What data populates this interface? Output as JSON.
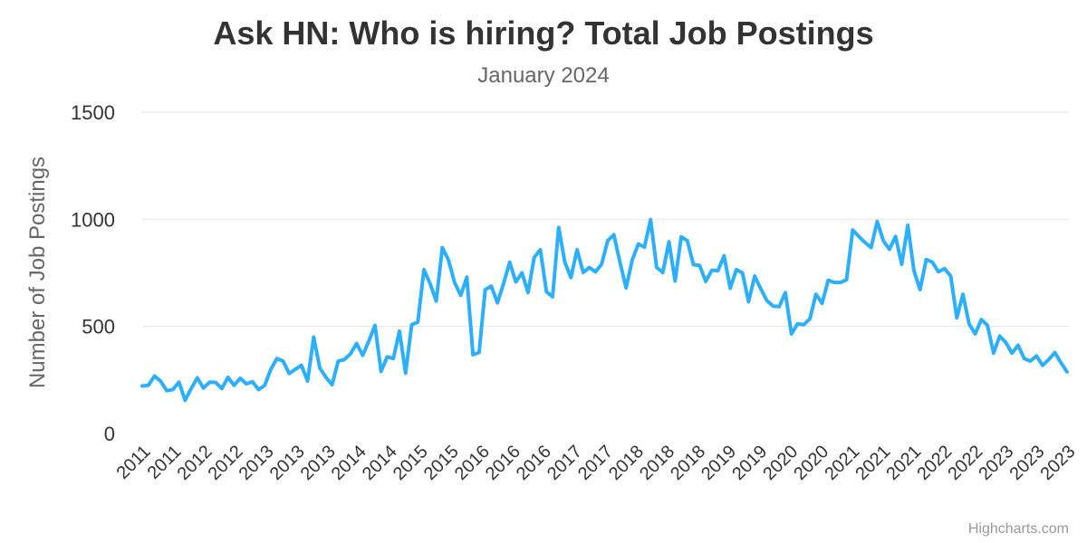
{
  "colors": {
    "series": "#2caffe",
    "grid": "#e6e6e6",
    "title": "#333333",
    "subtitle": "#666666",
    "credits": "#999999"
  },
  "credits": "Highcharts.com",
  "chart_data": {
    "type": "line",
    "title": "Ask HN: Who is hiring? Total Job Postings",
    "subtitle": "January 2024",
    "xlabel": "",
    "ylabel": "Number of Job Postings",
    "ylim": [
      0,
      1500
    ],
    "yticks": [
      0,
      500,
      1000,
      1500
    ],
    "grid": true,
    "legend": "none",
    "x_tick_labels": [
      "2011",
      "2011",
      "2012",
      "2012",
      "2013",
      "2013",
      "2013",
      "2014",
      "2014",
      "2015",
      "2015",
      "2016",
      "2016",
      "2016",
      "2017",
      "2017",
      "2018",
      "2018",
      "2018",
      "2019",
      "2019",
      "2020",
      "2020",
      "2021",
      "2021",
      "2021",
      "2022",
      "2022",
      "2023",
      "2023",
      "2023"
    ],
    "series": [
      {
        "values": [
          222,
          225,
          268,
          245,
          200,
          205,
          240,
          155,
          210,
          260,
          212,
          240,
          238,
          210,
          262,
          225,
          258,
          232,
          242,
          205,
          225,
          300,
          350,
          338,
          280,
          300,
          318,
          245,
          450,
          305,
          262,
          228,
          338,
          345,
          372,
          420,
          365,
          432,
          505,
          290,
          358,
          350,
          478,
          282,
          508,
          520,
          765,
          700,
          618,
          868,
          810,
          705,
          645,
          730,
          368,
          378,
          672,
          688,
          610,
          700,
          800,
          708,
          750,
          658,
          822,
          858,
          662,
          638,
          962,
          800,
          728,
          858,
          752,
          775,
          755,
          790,
          900,
          928,
          800,
          680,
          810,
          885,
          870,
          998,
          775,
          752,
          895,
          712,
          918,
          900,
          788,
          785,
          710,
          762,
          760,
          830,
          678,
          765,
          750,
          615,
          735,
          675,
          620,
          595,
          592,
          658,
          465,
          512,
          508,
          535,
          650,
          608,
          715,
          705,
          705,
          718,
          950,
          920,
          892,
          868,
          990,
          900,
          860,
          920,
          790,
          972,
          760,
          672,
          812,
          800,
          755,
          770,
          735,
          540,
          650,
          512,
          465,
          532,
          505,
          375,
          455,
          425,
          375,
          412,
          350,
          338,
          362,
          318,
          345,
          378,
          330,
          288
        ]
      }
    ]
  }
}
